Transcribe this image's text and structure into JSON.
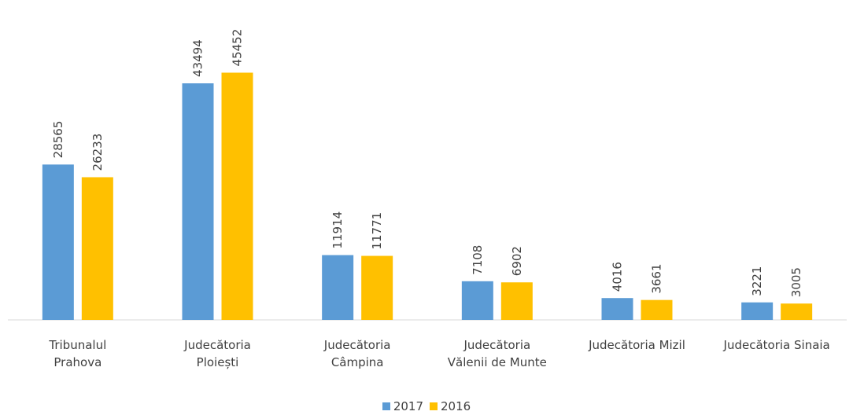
{
  "chart_data": {
    "type": "bar",
    "categories": [
      "Tribunalul\nPrahova",
      "Judecătoria\nPloiești",
      "Judecătoria\nCâmpina",
      "Judecătoria\nVălenii de Munte",
      "Judecătoria Mizil",
      "Judecătoria Sinaia"
    ],
    "series": [
      {
        "name": "2017",
        "color": "#5b9bd5",
        "values": [
          28565,
          43494,
          11914,
          7108,
          4016,
          3221
        ]
      },
      {
        "name": "2016",
        "color": "#ffc000",
        "values": [
          26233,
          45452,
          11771,
          6902,
          3661,
          3005
        ]
      }
    ],
    "ylim": [
      0,
      50000
    ]
  }
}
